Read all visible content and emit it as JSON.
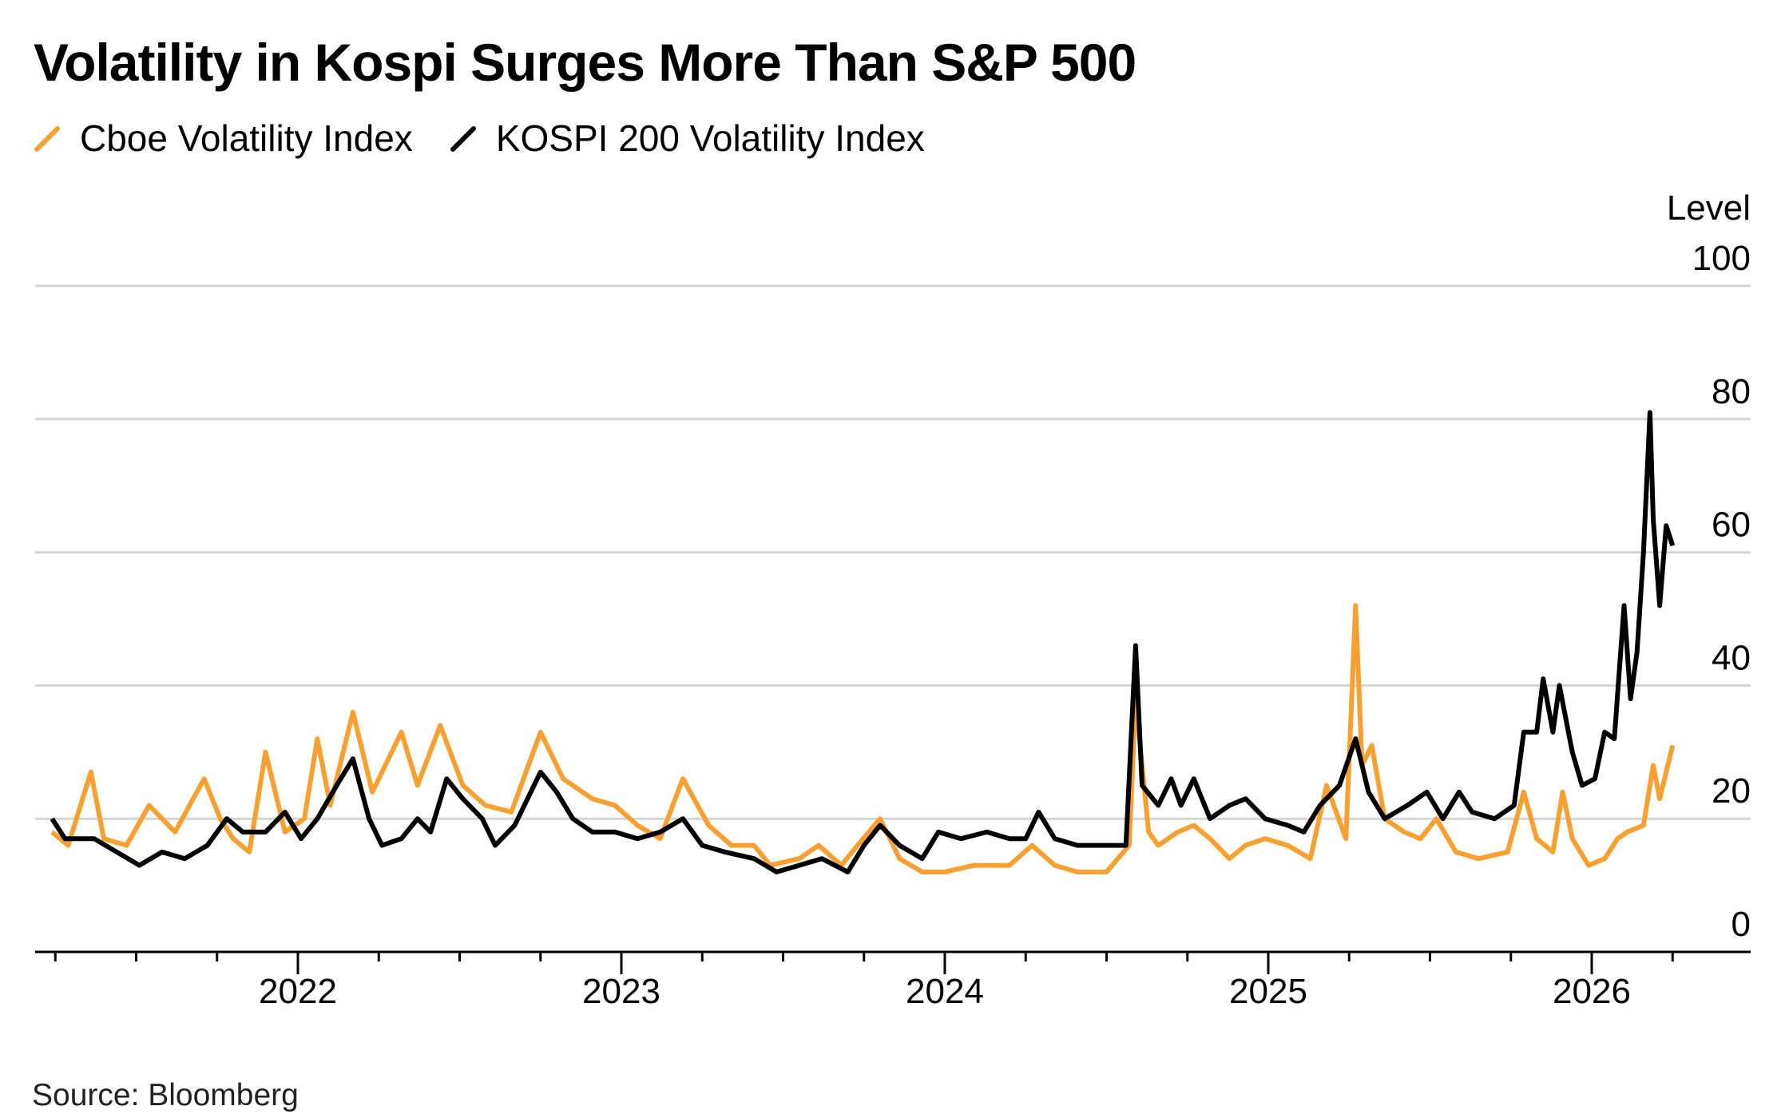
{
  "chart_data": {
    "type": "line",
    "title": "Volatility in Kospi Surges More Than S&P 500",
    "ylabel": "Level",
    "xlabel": "",
    "ylim": [
      0,
      100
    ],
    "xlim": [
      2021.22,
      2026.3
    ],
    "yticks": [
      "0",
      "20",
      "40",
      "60",
      "80",
      "100"
    ],
    "ytick_values": [
      0,
      20,
      40,
      60,
      80,
      100
    ],
    "xticks": [
      "2022",
      "2023",
      "2024",
      "2025",
      "2026"
    ],
    "xtick_values": [
      2022,
      2023,
      2024,
      2025,
      2026
    ],
    "grid": true,
    "legend_placement": "top-left",
    "source": "Source: Bloomberg",
    "series": [
      {
        "name": "Cboe Volatility Index",
        "color": "#F7A030",
        "points": [
          [
            2021.24,
            18
          ],
          [
            2021.29,
            16
          ],
          [
            2021.36,
            27
          ],
          [
            2021.4,
            17
          ],
          [
            2021.47,
            16
          ],
          [
            2021.54,
            22
          ],
          [
            2021.62,
            18
          ],
          [
            2021.71,
            26
          ],
          [
            2021.76,
            20
          ],
          [
            2021.8,
            17
          ],
          [
            2021.85,
            15
          ],
          [
            2021.9,
            30
          ],
          [
            2021.96,
            18
          ],
          [
            2022.02,
            20
          ],
          [
            2022.06,
            32
          ],
          [
            2022.1,
            22
          ],
          [
            2022.17,
            36
          ],
          [
            2022.23,
            24
          ],
          [
            2022.32,
            33
          ],
          [
            2022.37,
            25
          ],
          [
            2022.44,
            34
          ],
          [
            2022.51,
            25
          ],
          [
            2022.58,
            22
          ],
          [
            2022.66,
            21
          ],
          [
            2022.75,
            33
          ],
          [
            2022.82,
            26
          ],
          [
            2022.91,
            23
          ],
          [
            2022.98,
            22
          ],
          [
            2023.05,
            19
          ],
          [
            2023.12,
            17
          ],
          [
            2023.19,
            26
          ],
          [
            2023.27,
            19
          ],
          [
            2023.34,
            16
          ],
          [
            2023.41,
            16
          ],
          [
            2023.46,
            13
          ],
          [
            2023.55,
            14
          ],
          [
            2023.61,
            16
          ],
          [
            2023.68,
            13
          ],
          [
            2023.73,
            16
          ],
          [
            2023.8,
            20
          ],
          [
            2023.86,
            14
          ],
          [
            2023.93,
            12
          ],
          [
            2024.0,
            12
          ],
          [
            2024.09,
            13
          ],
          [
            2024.2,
            13
          ],
          [
            2024.27,
            16
          ],
          [
            2024.34,
            13
          ],
          [
            2024.41,
            12
          ],
          [
            2024.5,
            12
          ],
          [
            2024.57,
            16
          ],
          [
            2024.59,
            38
          ],
          [
            2024.63,
            18
          ],
          [
            2024.66,
            16
          ],
          [
            2024.72,
            18
          ],
          [
            2024.77,
            19
          ],
          [
            2024.82,
            17
          ],
          [
            2024.88,
            14
          ],
          [
            2024.93,
            16
          ],
          [
            2024.99,
            17
          ],
          [
            2025.06,
            16
          ],
          [
            2025.13,
            14
          ],
          [
            2025.18,
            25
          ],
          [
            2025.24,
            17
          ],
          [
            2025.27,
            52
          ],
          [
            2025.29,
            28
          ],
          [
            2025.32,
            31
          ],
          [
            2025.36,
            20
          ],
          [
            2025.42,
            18
          ],
          [
            2025.47,
            17
          ],
          [
            2025.52,
            20
          ],
          [
            2025.58,
            15
          ],
          [
            2025.65,
            14
          ],
          [
            2025.74,
            15
          ],
          [
            2025.79,
            24
          ],
          [
            2025.83,
            17
          ],
          [
            2025.88,
            15
          ],
          [
            2025.91,
            24
          ],
          [
            2025.94,
            17
          ],
          [
            2025.99,
            13
          ],
          [
            2026.04,
            14
          ],
          [
            2026.08,
            17
          ],
          [
            2026.11,
            18
          ],
          [
            2026.16,
            19
          ],
          [
            2026.19,
            28
          ],
          [
            2026.21,
            23
          ],
          [
            2026.25,
            31
          ]
        ]
      },
      {
        "name": "KOSPI 200 Volatility Index",
        "color": "#000000",
        "points": [
          [
            2021.24,
            20
          ],
          [
            2021.28,
            17
          ],
          [
            2021.37,
            17
          ],
          [
            2021.44,
            15
          ],
          [
            2021.51,
            13
          ],
          [
            2021.58,
            15
          ],
          [
            2021.65,
            14
          ],
          [
            2021.72,
            16
          ],
          [
            2021.78,
            20
          ],
          [
            2021.83,
            18
          ],
          [
            2021.9,
            18
          ],
          [
            2021.96,
            21
          ],
          [
            2022.01,
            17
          ],
          [
            2022.06,
            20
          ],
          [
            2022.12,
            25
          ],
          [
            2022.17,
            29
          ],
          [
            2022.22,
            20
          ],
          [
            2022.26,
            16
          ],
          [
            2022.32,
            17
          ],
          [
            2022.37,
            20
          ],
          [
            2022.41,
            18
          ],
          [
            2022.46,
            26
          ],
          [
            2022.51,
            23
          ],
          [
            2022.57,
            20
          ],
          [
            2022.61,
            16
          ],
          [
            2022.67,
            19
          ],
          [
            2022.75,
            27
          ],
          [
            2022.8,
            24
          ],
          [
            2022.85,
            20
          ],
          [
            2022.91,
            18
          ],
          [
            2022.98,
            18
          ],
          [
            2023.05,
            17
          ],
          [
            2023.12,
            18
          ],
          [
            2023.19,
            20
          ],
          [
            2023.25,
            16
          ],
          [
            2023.32,
            15
          ],
          [
            2023.41,
            14
          ],
          [
            2023.48,
            12
          ],
          [
            2023.55,
            13
          ],
          [
            2023.62,
            14
          ],
          [
            2023.7,
            12
          ],
          [
            2023.75,
            16
          ],
          [
            2023.8,
            19
          ],
          [
            2023.86,
            16
          ],
          [
            2023.93,
            14
          ],
          [
            2023.98,
            18
          ],
          [
            2024.05,
            17
          ],
          [
            2024.13,
            18
          ],
          [
            2024.2,
            17
          ],
          [
            2024.25,
            17
          ],
          [
            2024.29,
            21
          ],
          [
            2024.34,
            17
          ],
          [
            2024.41,
            16
          ],
          [
            2024.5,
            16
          ],
          [
            2024.56,
            16
          ],
          [
            2024.59,
            46
          ],
          [
            2024.61,
            25
          ],
          [
            2024.66,
            22
          ],
          [
            2024.7,
            26
          ],
          [
            2024.73,
            22
          ],
          [
            2024.77,
            26
          ],
          [
            2024.82,
            20
          ],
          [
            2024.88,
            22
          ],
          [
            2024.93,
            23
          ],
          [
            2024.99,
            20
          ],
          [
            2025.06,
            19
          ],
          [
            2025.11,
            18
          ],
          [
            2025.16,
            22
          ],
          [
            2025.22,
            25
          ],
          [
            2025.27,
            32
          ],
          [
            2025.31,
            24
          ],
          [
            2025.36,
            20
          ],
          [
            2025.43,
            22
          ],
          [
            2025.49,
            24
          ],
          [
            2025.54,
            20
          ],
          [
            2025.59,
            24
          ],
          [
            2025.63,
            21
          ],
          [
            2025.7,
            20
          ],
          [
            2025.76,
            22
          ],
          [
            2025.79,
            33
          ],
          [
            2025.83,
            33
          ],
          [
            2025.85,
            41
          ],
          [
            2025.88,
            33
          ],
          [
            2025.9,
            40
          ],
          [
            2025.94,
            30
          ],
          [
            2025.97,
            25
          ],
          [
            2026.01,
            26
          ],
          [
            2026.04,
            33
          ],
          [
            2026.07,
            32
          ],
          [
            2026.1,
            52
          ],
          [
            2026.12,
            38
          ],
          [
            2026.14,
            45
          ],
          [
            2026.16,
            60
          ],
          [
            2026.18,
            81
          ],
          [
            2026.19,
            65
          ],
          [
            2026.21,
            52
          ],
          [
            2026.23,
            64
          ],
          [
            2026.25,
            61
          ]
        ]
      }
    ]
  }
}
